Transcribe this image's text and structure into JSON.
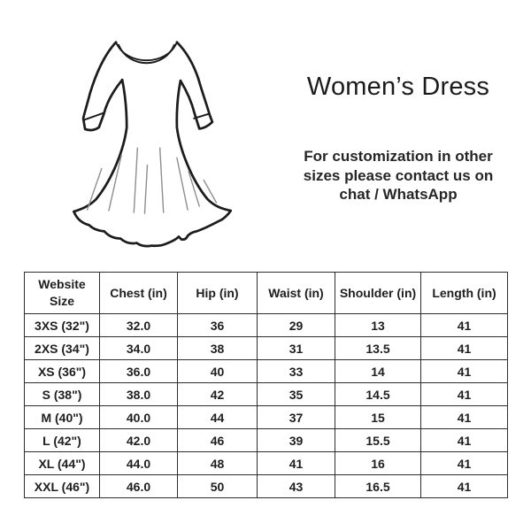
{
  "colors": {
    "background": "#ffffff",
    "text": "#1e1e1e",
    "table_border": "#2d2d2d",
    "line_art": "#1c1c1c",
    "fold_line": "#8f8f8f"
  },
  "header": {
    "title": "Women’s Dress",
    "note_lines": [
      "For customization in other",
      "sizes please contact us on",
      "chat / WhatsApp"
    ]
  },
  "illustration": {
    "alt": "women's dress line drawing with long sleeves and flared skirt"
  },
  "size_chart": {
    "columns": [
      "Website Size",
      "Chest (in)",
      "Hip (in)",
      "Waist (in)",
      "Shoulder (in)",
      "Length (in)"
    ],
    "rows": [
      [
        "3XS (32\")",
        "32.0",
        "36",
        "29",
        "13",
        "41"
      ],
      [
        "2XS (34\")",
        "34.0",
        "38",
        "31",
        "13.5",
        "41"
      ],
      [
        "XS (36\")",
        "36.0",
        "40",
        "33",
        "14",
        "41"
      ],
      [
        "S (38\")",
        "38.0",
        "42",
        "35",
        "14.5",
        "41"
      ],
      [
        "M (40\")",
        "40.0",
        "44",
        "37",
        "15",
        "41"
      ],
      [
        "L (42\")",
        "42.0",
        "46",
        "39",
        "15.5",
        "41"
      ],
      [
        "XL (44\")",
        "44.0",
        "48",
        "41",
        "16",
        "41"
      ],
      [
        "XXL (46\")",
        "46.0",
        "50",
        "43",
        "16.5",
        "41"
      ]
    ]
  }
}
